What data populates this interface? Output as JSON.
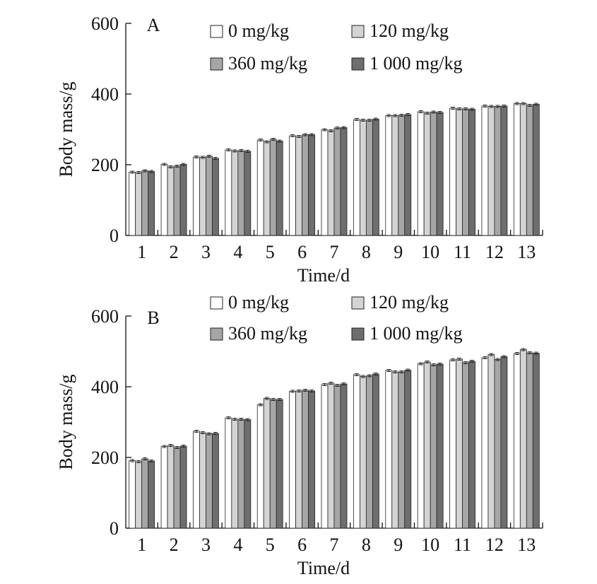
{
  "chart_data": [
    {
      "type": "bar",
      "panel_label": "A",
      "xlabel": "Time/d",
      "ylabel": "Body mass/g",
      "ylim": [
        0,
        600
      ],
      "yticks": [
        "0",
        "200",
        "400",
        "600"
      ],
      "categories": [
        "1",
        "2",
        "3",
        "4",
        "5",
        "6",
        "7",
        "8",
        "9",
        "10",
        "11",
        "12",
        "13"
      ],
      "legend_position": "top-right",
      "series": [
        {
          "name": "0 mg/kg",
          "color": "#ffffff",
          "values": [
            179,
            201,
            222,
            242,
            270,
            282,
            299,
            328,
            339,
            350,
            360,
            366,
            373
          ],
          "errors": [
            3,
            3,
            3,
            3,
            3,
            3,
            3,
            3,
            3,
            3,
            3,
            3,
            3
          ]
        },
        {
          "name": "120 mg/kg",
          "color": "#d4d4d4",
          "values": [
            178,
            194,
            221,
            239,
            265,
            280,
            296,
            326,
            339,
            346,
            358,
            365,
            373
          ],
          "errors": [
            3,
            3,
            3,
            3,
            3,
            3,
            3,
            3,
            3,
            3,
            3,
            3,
            3
          ]
        },
        {
          "name": "360 mg/kg",
          "color": "#a6a6a6",
          "values": [
            183,
            196,
            224,
            240,
            272,
            285,
            304,
            326,
            340,
            349,
            358,
            365,
            368
          ],
          "errors": [
            3,
            3,
            3,
            3,
            3,
            3,
            3,
            3,
            3,
            3,
            3,
            3,
            3
          ]
        },
        {
          "name": "1 000 mg/kg",
          "color": "#6e6e6e",
          "values": [
            181,
            201,
            218,
            238,
            267,
            285,
            305,
            329,
            342,
            348,
            357,
            366,
            371
          ],
          "errors": [
            3,
            3,
            3,
            3,
            3,
            3,
            3,
            3,
            3,
            3,
            3,
            3,
            3
          ]
        }
      ]
    },
    {
      "type": "bar",
      "panel_label": "B",
      "xlabel": "Time/d",
      "ylabel": "Body mass/g",
      "ylim": [
        0,
        600
      ],
      "yticks": [
        "0",
        "200",
        "400",
        "600"
      ],
      "categories": [
        "1",
        "2",
        "3",
        "4",
        "5",
        "6",
        "7",
        "8",
        "9",
        "10",
        "11",
        "12",
        "13"
      ],
      "legend_position": "top-right",
      "series": [
        {
          "name": "0 mg/kg",
          "color": "#ffffff",
          "values": [
            191,
            231,
            274,
            312,
            349,
            387,
            406,
            434,
            446,
            465,
            476,
            482,
            494
          ],
          "errors": [
            3,
            3,
            3,
            3,
            3,
            3,
            3,
            3,
            3,
            3,
            3,
            3,
            3
          ]
        },
        {
          "name": "120 mg/kg",
          "color": "#d4d4d4",
          "values": [
            188,
            234,
            270,
            308,
            367,
            388,
            410,
            429,
            442,
            470,
            478,
            491,
            505
          ],
          "errors": [
            3,
            3,
            3,
            3,
            3,
            3,
            3,
            3,
            3,
            3,
            3,
            3,
            3
          ]
        },
        {
          "name": "360 mg/kg",
          "color": "#a6a6a6",
          "values": [
            196,
            228,
            267,
            308,
            364,
            390,
            404,
            431,
            442,
            462,
            468,
            477,
            496
          ],
          "errors": [
            3,
            3,
            3,
            3,
            3,
            3,
            3,
            3,
            3,
            3,
            3,
            3,
            3
          ]
        },
        {
          "name": "1 000 mg/kg",
          "color": "#6e6e6e",
          "values": [
            190,
            232,
            268,
            307,
            364,
            388,
            408,
            436,
            447,
            464,
            472,
            485,
            495
          ],
          "errors": [
            3,
            3,
            3,
            3,
            3,
            3,
            3,
            3,
            3,
            3,
            3,
            3,
            3
          ]
        }
      ]
    }
  ]
}
